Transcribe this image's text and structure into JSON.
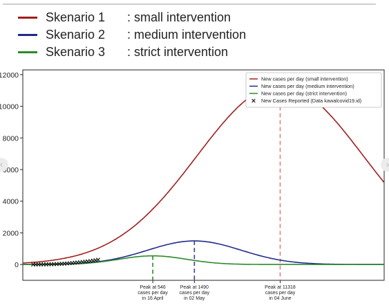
{
  "top_legend": [
    {
      "name": "Skenario 1",
      "desc": ": small intervention",
      "color": "#a11d1d"
    },
    {
      "name": "Skenario 2",
      "desc": ": medium intervention",
      "color": "#1f2a8a"
    },
    {
      "name": "Skenario 3",
      "desc": ": strict intervention",
      "color": "#2a8a2a"
    }
  ],
  "chart_data": {
    "type": "line",
    "title": "",
    "xlabel": "",
    "ylabel": "",
    "ylim": [
      -1000,
      12300
    ],
    "yticks": [
      "0",
      "2000",
      "4000",
      "6000",
      "8000",
      "10000",
      "12000"
    ],
    "yticks_values": [
      0,
      2000,
      4000,
      6000,
      8000,
      10000,
      12000
    ],
    "grid": false,
    "legend_position": "top-right",
    "series": [
      {
        "name": "New cases per day (small intervention)",
        "color": "#a11d1d",
        "peak_value": 11318,
        "peak_day": 95,
        "width_days": 32
      },
      {
        "name": "New cases per day (medium intervention)",
        "color": "#1f2a8a",
        "peak_value": 1490,
        "peak_day": 62,
        "width_days": 18
      },
      {
        "name": "New cases per day (strict intervention)",
        "color": "#2a8a2a",
        "peak_value": 546,
        "peak_day": 46,
        "width_days": 13
      }
    ],
    "reported": {
      "name": "New Cases Reported (Data kawalcovid19.id)",
      "x": [
        0,
        1,
        2,
        3,
        4,
        5,
        6,
        7,
        8,
        9,
        10,
        11,
        12,
        13,
        14,
        15,
        16,
        17,
        18,
        19,
        20,
        21,
        22,
        23,
        24,
        25
      ],
      "y": [
        2,
        3,
        4,
        6,
        8,
        10,
        14,
        18,
        24,
        30,
        38,
        46,
        56,
        68,
        80,
        95,
        110,
        125,
        140,
        158,
        178,
        198,
        220,
        245,
        270,
        300
      ]
    },
    "annotations": [
      {
        "text": [
          "Peak at 546",
          "cases per day",
          "in 16 April"
        ],
        "x": 46,
        "y": 546,
        "color": "#2a8a2a"
      },
      {
        "text": [
          "Peak at 1490",
          "cases per day",
          "in 02 May"
        ],
        "x": 62,
        "y": 1490,
        "color": "#3a3aa0"
      },
      {
        "text": [
          "Peak at 11318",
          "cases per day",
          "in 04 June"
        ],
        "x": 95,
        "y": 11318,
        "color": "#e08080"
      }
    ]
  }
}
